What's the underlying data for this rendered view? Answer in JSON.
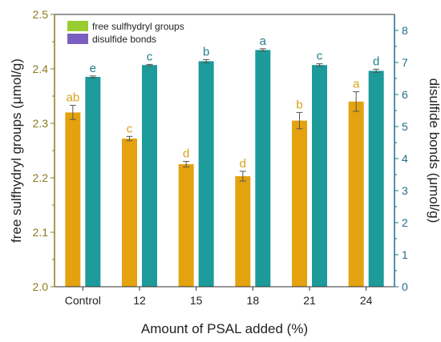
{
  "chart_data": {
    "type": "bar",
    "categories": [
      "Control",
      "12",
      "15",
      "18",
      "21",
      "24"
    ],
    "xlabel": "Amount of PSAL added (%)",
    "series": [
      {
        "name": "free sulfhydryl groups",
        "axis": "left",
        "values": [
          2.32,
          2.272,
          2.225,
          2.203,
          2.305,
          2.34
        ],
        "errors": [
          0.013,
          0.004,
          0.005,
          0.009,
          0.015,
          0.018
        ],
        "labels": [
          "ab",
          "c",
          "d",
          "d",
          "b",
          "a"
        ]
      },
      {
        "name": "disulfide bonds",
        "axis": "right",
        "values": [
          6.55,
          6.92,
          7.04,
          7.39,
          6.92,
          6.74
        ],
        "errors": [
          0.03,
          0.02,
          0.05,
          0.04,
          0.04,
          0.05
        ],
        "labels": [
          "e",
          "c",
          "b",
          "a",
          "c",
          "d"
        ]
      }
    ],
    "y_left": {
      "label": "free sulfhydryl groups (μmol/g)",
      "lim": [
        2.0,
        2.5
      ],
      "ticks": [
        "2.0",
        "2.1",
        "2.2",
        "2.3",
        "2.4",
        "2.5"
      ]
    },
    "y_right": {
      "label": "disulfide bonds (μmol/g)",
      "lim": [
        0,
        8.5
      ],
      "ticks": [
        "0",
        "1",
        "2",
        "3",
        "4",
        "5",
        "6",
        "7",
        "8"
      ]
    },
    "legend_position": "top-left",
    "legend_swatch_colors": [
      "#9acd32",
      "#7b5fbf"
    ],
    "colors": {
      "bar_left": "#e4a20f",
      "bar_right": "#1d9a9a",
      "axis_left": "#8b7a1e",
      "axis_right": "#1f6e8c",
      "sig_left": "#d8a21a",
      "sig_right": "#1f7f8c",
      "error": "#555555"
    }
  }
}
